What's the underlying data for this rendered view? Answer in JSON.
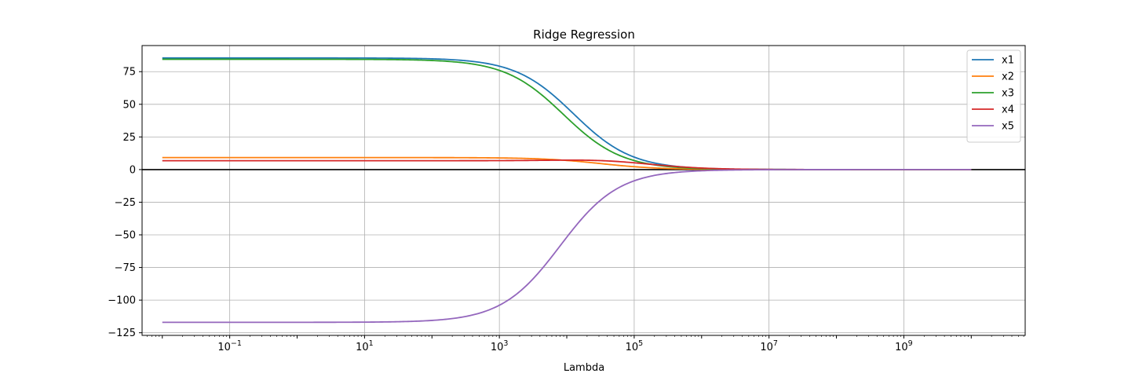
{
  "chart_data": {
    "type": "line",
    "title": "Ridge Regression",
    "xlabel": "Lambda",
    "ylabel": "",
    "xscale": "log",
    "xlim_exp": [
      -2.3,
      10.8
    ],
    "ylim": [
      -127,
      95
    ],
    "grid": true,
    "legend_position": "top-right",
    "xtick_labels": [
      "10",
      "10",
      "10",
      "10",
      "10",
      "10"
    ],
    "xtick_exponents": [
      "−1",
      "1",
      "3",
      "5",
      "7",
      "9"
    ],
    "xtick_exp_values": [
      -1,
      1,
      3,
      5,
      7,
      9
    ],
    "yticks": [
      75,
      50,
      25,
      0,
      -25,
      -50,
      -75,
      -100,
      -125
    ],
    "ytick_labels": [
      "75",
      "50",
      "25",
      "0",
      "−25",
      "−50",
      "−75",
      "−100",
      "−125"
    ],
    "zero_line": {
      "y": 0,
      "color": "#000000"
    },
    "lambda_range_exp": [
      -2,
      10
    ],
    "series": [
      {
        "name": "x1",
        "color": "#1f77b4",
        "coef_at_low_lambda": 85.5,
        "shrink_scale_exp": 4.1
      },
      {
        "name": "x2",
        "color": "#ff7f0e",
        "coef_at_low_lambda": 9.2,
        "shrink_scale_exp": 4.5
      },
      {
        "name": "x3",
        "color": "#2ca02c",
        "coef_at_low_lambda": 84.5,
        "shrink_scale_exp": 3.95
      },
      {
        "name": "x4",
        "color": "#d62728",
        "coef_at_low_lambda": 6.8,
        "bump_to": 8.6,
        "bump_at_exp": 4.0,
        "shrink_scale_exp": 5.2
      },
      {
        "name": "x5",
        "color": "#9467bd",
        "coef_at_low_lambda": -117.0,
        "shrink_scale_exp": 3.9
      }
    ]
  }
}
